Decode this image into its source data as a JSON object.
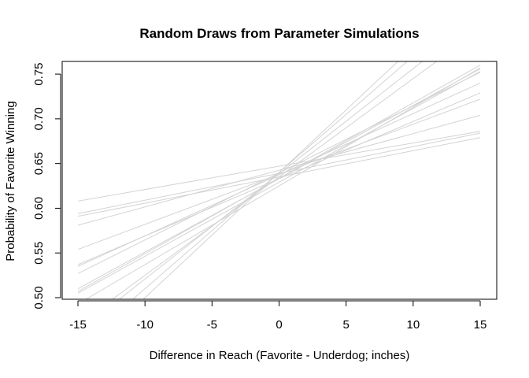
{
  "chart_data": {
    "type": "line",
    "title": "Random Draws from Parameter Simulations",
    "xlabel": "Difference in Reach (Favorite - Underdog; inches)",
    "ylabel": "Probability of Favorite Winning",
    "xlim": [
      -15,
      15
    ],
    "ylim": [
      0.5,
      0.76
    ],
    "xticks": [
      -15,
      -10,
      -5,
      0,
      5,
      10,
      15
    ],
    "xtick_labels": [
      "-15",
      "-10",
      "-5",
      "0",
      "5",
      "10",
      "15"
    ],
    "yticks": [
      0.5,
      0.55,
      0.6,
      0.65,
      0.7,
      0.75
    ],
    "ytick_labels": [
      "0.50",
      "0.55",
      "0.60",
      "0.65",
      "0.70",
      "0.75"
    ],
    "line_color": "#d3d3d3",
    "grid": false,
    "legend": "none",
    "series": [
      {
        "x": [
          -15,
          15
        ],
        "values": [
          0.608,
          0.686
        ]
      },
      {
        "x": [
          -15,
          15
        ],
        "values": [
          0.594,
          0.684
        ]
      },
      {
        "x": [
          -15,
          15
        ],
        "values": [
          0.591,
          0.679
        ]
      },
      {
        "x": [
          -15,
          15
        ],
        "values": [
          0.581,
          0.704
        ]
      },
      {
        "x": [
          -15,
          15
        ],
        "values": [
          0.554,
          0.722
        ]
      },
      {
        "x": [
          -15,
          15
        ],
        "values": [
          0.537,
          0.729
        ]
      },
      {
        "x": [
          -15,
          15
        ],
        "values": [
          0.535,
          0.74
        ]
      },
      {
        "x": [
          -15,
          15
        ],
        "values": [
          0.527,
          0.752
        ]
      },
      {
        "x": [
          -15,
          15
        ],
        "values": [
          0.51,
          0.756
        ]
      },
      {
        "x": [
          -15,
          15
        ],
        "values": [
          0.507,
          0.76
        ]
      },
      {
        "x": [
          -15,
          15
        ],
        "values": [
          0.505,
          0.753
        ]
      },
      {
        "x": [
          -15,
          15
        ],
        "values": [
          0.493,
          0.757
        ]
      },
      {
        "x": [
          -15,
          15
        ],
        "values": [
          0.47,
          0.8
        ]
      },
      {
        "x": [
          -15,
          15
        ],
        "values": [
          0.462,
          0.815
        ]
      },
      {
        "x": [
          -15,
          15
        ],
        "values": [
          0.445,
          0.835
        ]
      },
      {
        "x": [
          -15,
          15
        ],
        "values": [
          0.43,
          0.85
        ]
      }
    ]
  }
}
